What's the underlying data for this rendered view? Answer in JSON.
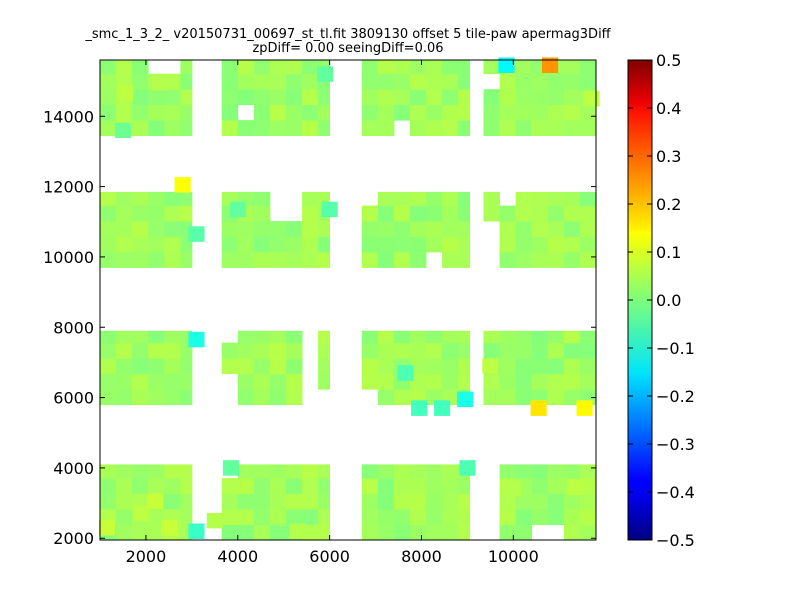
{
  "chart_data": {
    "type": "heatmap",
    "title_line1": "_smc_1_3_2_ v20150731_00697_st_tl.fit 3809130 offset 5 tile-paw apermag3Diff",
    "title_line2": "zpDiff= 0.00 seeingDiff=0.06",
    "xlabel": "",
    "ylabel": "",
    "xlim": [
      1000,
      11800
    ],
    "ylim": [
      1950,
      15600
    ],
    "xticks": [
      2000,
      4000,
      6000,
      8000,
      10000
    ],
    "yticks": [
      2000,
      4000,
      6000,
      8000,
      10000,
      12000,
      14000
    ],
    "colorbar": {
      "colormap": "jet",
      "range": [
        -0.5,
        0.5
      ],
      "ticks": [
        "0.5",
        "0.4",
        "0.3",
        "0.2",
        "0.1",
        "0.0",
        "−0.1",
        "−0.2",
        "−0.3",
        "−0.4",
        "−0.5"
      ]
    },
    "cell_size": [
      350,
      440
    ],
    "base_value": 0.03,
    "detectors": {
      "columns": [
        [
          1000,
          3000
        ],
        [
          3650,
          6000
        ],
        [
          6700,
          9050
        ],
        [
          9350,
          11800
        ]
      ],
      "rows": [
        [
          1950,
          4100
        ],
        [
          5800,
          7900
        ],
        [
          9700,
          11850
        ],
        [
          13450,
          15600
        ]
      ]
    },
    "holes": [
      [
        2950,
        3300,
        2000,
        4100
      ],
      [
        3650,
        4000,
        3650,
        4100
      ],
      [
        2950,
        3300,
        5800,
        7900
      ],
      [
        3650,
        4000,
        5800,
        6500
      ],
      [
        3650,
        4000,
        7500,
        7900
      ],
      [
        5300,
        5700,
        5800,
        7900
      ],
      [
        5700,
        6000,
        5800,
        6200
      ],
      [
        6000,
        6000,
        5800,
        7900
      ],
      [
        3300,
        3650,
        9700,
        11850
      ],
      [
        3300,
        3650,
        13450,
        15600
      ],
      [
        4000,
        4350,
        13900,
        14350
      ],
      [
        4650,
        5350,
        10950,
        11850
      ],
      [
        2000,
        2700,
        15250,
        15600
      ],
      [
        6000,
        6350,
        15250,
        15600
      ],
      [
        6000,
        6700,
        13450,
        14000
      ],
      [
        7400,
        7750,
        13450,
        13800
      ],
      [
        9050,
        9350,
        9700,
        15600
      ],
      [
        9350,
        9700,
        14750,
        15250
      ],
      [
        9700,
        10050,
        11250,
        11850
      ],
      [
        9350,
        9700,
        9700,
        11000
      ],
      [
        8000,
        8400,
        9700,
        10350
      ],
      [
        9050,
        9700,
        2000,
        4100
      ],
      [
        6700,
        7050,
        11450,
        11850
      ],
      [
        10400,
        11000,
        2000,
        2500
      ],
      [
        3000,
        3300,
        9700,
        10850
      ],
      [
        6700,
        7000,
        5800,
        6250
      ]
    ],
    "cells": [
      [
        2800,
        12050,
        0.12
      ],
      [
        9850,
        15450,
        -0.13
      ],
      [
        10800,
        15450,
        0.23
      ],
      [
        10550,
        5700,
        0.15
      ],
      [
        11550,
        5700,
        0.13
      ],
      [
        3100,
        7650,
        -0.1
      ],
      [
        3100,
        2200,
        -0.07
      ],
      [
        8950,
        5950,
        -0.1
      ],
      [
        7950,
        5700,
        -0.06
      ],
      [
        8450,
        5700,
        -0.06
      ],
      [
        3100,
        10650,
        -0.04
      ],
      [
        6000,
        11350,
        -0.04
      ],
      [
        4000,
        11350,
        -0.03
      ],
      [
        3850,
        4000,
        -0.03
      ],
      [
        9000,
        4000,
        -0.05
      ],
      [
        7650,
        6700,
        -0.05
      ],
      [
        5900,
        15200,
        -0.03
      ],
      [
        1500,
        13600,
        -0.02
      ],
      [
        1900,
        2700,
        0.06
      ],
      [
        2200,
        3050,
        0.07
      ],
      [
        2500,
        2300,
        0.07
      ],
      [
        10000,
        3400,
        0.05
      ],
      [
        11350,
        3450,
        0.06
      ],
      [
        1550,
        14650,
        0.06
      ],
      [
        2300,
        14950,
        0.05
      ],
      [
        1150,
        2300,
        0.07
      ],
      [
        3500,
        2500,
        0.05
      ],
      [
        9500,
        6900,
        0.06
      ],
      [
        5300,
        2200,
        0.05
      ],
      [
        11700,
        14500,
        0.06
      ]
    ]
  }
}
